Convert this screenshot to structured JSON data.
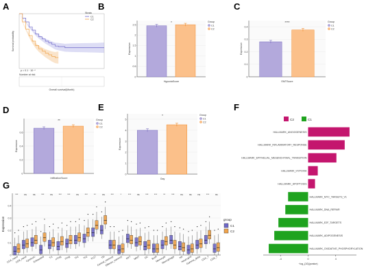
{
  "colors": {
    "c1": "#b3a9dc",
    "c1_edge": "#7b6fc0",
    "c2": "#fbc08a",
    "c2_edge": "#f08a2a",
    "g1": "#6f68c9",
    "g2": "#f0a34a",
    "magenta": "#c4166e",
    "green": "#1fa31f",
    "km1": "#9d9ee2",
    "km2": "#f2b26a"
  },
  "panel_labels": [
    "A",
    "B",
    "C",
    "D",
    "E",
    "F",
    "G"
  ],
  "chart_data": [
    {
      "id": "A",
      "type": "line",
      "xlabel": "Overall survival(Month)",
      "ylabel": "Survival probability",
      "legend_title": "Strata",
      "series": [
        {
          "name": "C1",
          "x": [
            0,
            5,
            10,
            15,
            20,
            25,
            30,
            35,
            40,
            45,
            50,
            55,
            60,
            70,
            80,
            100,
            120,
            130
          ],
          "y": [
            1,
            0.92,
            0.85,
            0.76,
            0.7,
            0.63,
            0.58,
            0.54,
            0.5,
            0.47,
            0.44,
            0.41,
            0.4,
            0.38,
            0.38,
            0.38,
            0.38,
            0.38
          ]
        },
        {
          "name": "C2",
          "x": [
            0,
            5,
            10,
            15,
            20,
            25,
            30,
            35,
            40,
            45,
            50,
            55,
            60
          ],
          "y": [
            1,
            0.85,
            0.72,
            0.6,
            0.5,
            0.42,
            0.36,
            0.32,
            0.28,
            0.25,
            0.22,
            0.2,
            0.2
          ]
        }
      ],
      "annotation": "p = 0.1 · 10⁻⁴",
      "risk_table_title": "Number at risk"
    },
    {
      "id": "B",
      "type": "bar",
      "categories": [
        "HypoxiaScore"
      ],
      "ylabel": "Expression",
      "series": [
        {
          "name": "C1",
          "values": [
            2.45
          ]
        },
        {
          "name": "C2",
          "values": [
            2.5
          ]
        }
      ],
      "ylim": [
        0,
        2.7
      ],
      "yticks": [
        0,
        0.5,
        1.0,
        1.5,
        2.0,
        2.5
      ],
      "significance": "*",
      "legend_title": "Group"
    },
    {
      "id": "C",
      "type": "bar",
      "categories": [
        "EMTScore"
      ],
      "ylabel": "Expression",
      "series": [
        {
          "name": "C1",
          "values": [
            0.28
          ]
        },
        {
          "name": "C2",
          "values": [
            0.375
          ]
        }
      ],
      "ylim": [
        0,
        0.45
      ],
      "yticks": [
        0,
        0.1,
        0.2,
        0.3,
        0.4
      ],
      "significance": "****",
      "legend_title": "Group"
    },
    {
      "id": "D",
      "type": "bar",
      "categories": [
        "InfiltrationScore"
      ],
      "ylabel": "Expression",
      "series": [
        {
          "name": "C1",
          "values": [
            0.66
          ]
        },
        {
          "name": "C2",
          "values": [
            0.69
          ]
        }
      ],
      "ylim": [
        0,
        0.8
      ],
      "yticks": [
        0,
        0.2,
        0.4,
        0.6
      ],
      "significance": "**",
      "legend_title": "Group"
    },
    {
      "id": "E",
      "type": "bar",
      "categories": [
        "Gay"
      ],
      "ylabel": "Expression",
      "series": [
        {
          "name": "C1",
          "values": [
            4.0
          ]
        },
        {
          "name": "C2",
          "values": [
            4.5
          ]
        }
      ],
      "ylim": [
        0,
        5.5
      ],
      "yticks": [
        0,
        1,
        2,
        3,
        4,
        5
      ],
      "significance": "*",
      "legend_title": "Group"
    },
    {
      "id": "F",
      "type": "bar",
      "xlabel": "−log_{10}(pvalue)",
      "legend": [
        "C2",
        "C1"
      ],
      "categories": [
        "HALLMARK_ANGIOGENESIS",
        "HALLMARK_INFLAMMATORY_RESPONSE",
        "HALLMARK_EPITHELIAL_MESENCHYMAL_TRANSITION",
        "HALLMARK_HYPOXIA",
        "HALLMARK_APOPTOSIS",
        "HALLMARK_MYC_TARGETS_V1",
        "HALLMARK_DNA_REPAIR",
        "HALLMARK_E2F_TARGETS",
        "HALLMARK_ADIPOGENESIS",
        "HALLMARK_OXIDATIVE_PHOSPHORYLATION"
      ],
      "values": [
        6.0,
        5.3,
        4.1,
        1.4,
        1.0,
        -2.9,
        -3.3,
        -4.3,
        -4.9,
        -5.7
      ],
      "xticks": [
        -4,
        0,
        4
      ],
      "xlim": [
        -6.5,
        7
      ]
    },
    {
      "id": "G",
      "type": "box",
      "ylabel": "Expression",
      "legend_title": "group",
      "series_names": [
        "C1",
        "C2"
      ],
      "categories": [
        "CD4_naive",
        "CD8_naive",
        "Cytotoxic",
        "Exhausted",
        "Tr1",
        "nTreg",
        "iTreg",
        "Th1",
        "Th2",
        "Th17",
        "Tfh",
        "Central_memory",
        "Effector_memory",
        "NKT",
        "MAIT",
        "DC",
        "Bcell",
        "Monocyte",
        "Macrophage",
        "NK",
        "Neutrophil",
        "Gamma_delta",
        "CD4_T",
        "CD8_T"
      ],
      "significance": [
        "***",
        "ns",
        "ns",
        "***",
        "ns",
        "***",
        "***",
        "ns",
        "***",
        "**",
        "ns",
        "***",
        "*",
        "***",
        "ns",
        "***",
        "***",
        "**",
        "***",
        "ns",
        "ns",
        "ns",
        "***",
        "ns"
      ],
      "medians_c1": [
        0.03,
        0.08,
        0.1,
        0.04,
        0.08,
        0.07,
        0.09,
        0.12,
        0.13,
        0.18,
        0.2,
        0.08,
        0.04,
        0.13,
        0.1,
        0.07,
        0.05,
        0.08,
        0.12,
        0.07,
        0.04,
        0.08,
        0.12,
        0.05
      ],
      "medians_c2": [
        0.05,
        0.09,
        0.12,
        0.14,
        0.1,
        0.11,
        0.12,
        0.14,
        0.18,
        0.24,
        0.28,
        0.08,
        0.05,
        0.12,
        0.11,
        0.08,
        0.05,
        0.11,
        0.08,
        0.06,
        0.05,
        0.09,
        0.16,
        0.06
      ],
      "ylim": [
        0,
        0.5
      ],
      "yticks": [
        0,
        0.1,
        0.2,
        0.3,
        0.4
      ]
    }
  ]
}
